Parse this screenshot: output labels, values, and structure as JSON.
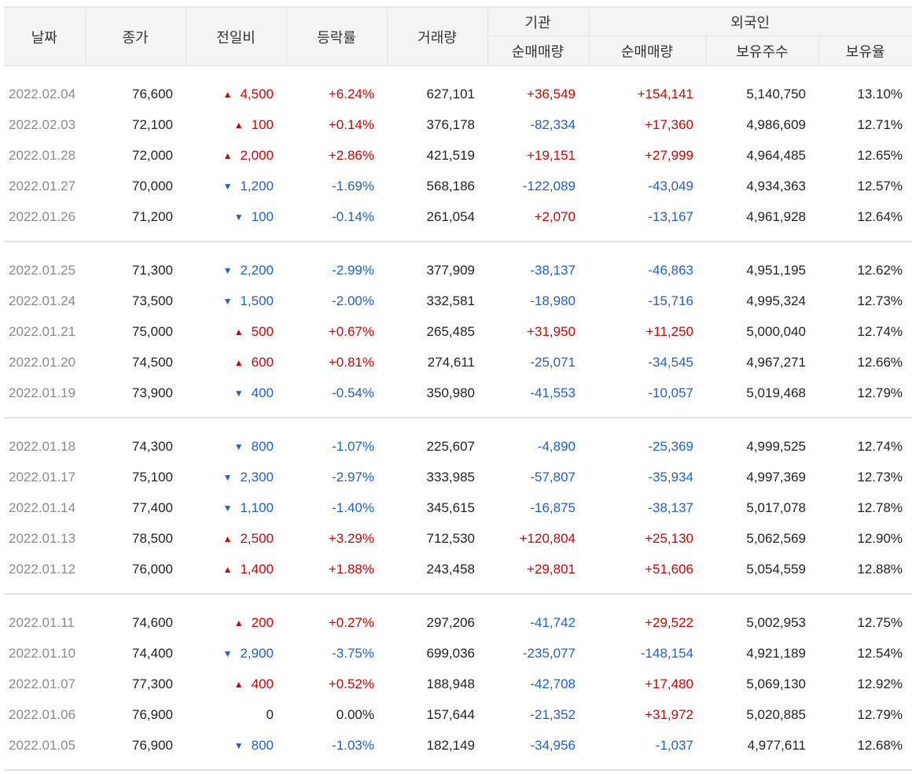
{
  "headers": {
    "date": "날짜",
    "close": "종가",
    "change": "전일비",
    "rate": "등락률",
    "volume": "거래량",
    "institution": "기관",
    "inst_net": "순매매량",
    "foreigner": "외국인",
    "for_net": "순매매량",
    "holdings": "보유주수",
    "ratio": "보유율"
  },
  "colors": {
    "up": "#d60000",
    "down": "#1f5fd1",
    "date": "#8a8a8a"
  },
  "groups": [
    [
      {
        "date": "2022.02.04",
        "close": "76,600",
        "dir": "up",
        "change": "4,500",
        "rate": "+6.24%",
        "volume": "627,101",
        "inst": "+36,549",
        "foreign": "+154,141",
        "holdings": "5,140,750",
        "ratio": "13.10%"
      },
      {
        "date": "2022.02.03",
        "close": "72,100",
        "dir": "up",
        "change": "100",
        "rate": "+0.14%",
        "volume": "376,178",
        "inst": "-82,334",
        "foreign": "+17,360",
        "holdings": "4,986,609",
        "ratio": "12.71%"
      },
      {
        "date": "2022.01.28",
        "close": "72,000",
        "dir": "up",
        "change": "2,000",
        "rate": "+2.86%",
        "volume": "421,519",
        "inst": "+19,151",
        "foreign": "+27,999",
        "holdings": "4,964,485",
        "ratio": "12.65%"
      },
      {
        "date": "2022.01.27",
        "close": "70,000",
        "dir": "down",
        "change": "1,200",
        "rate": "-1.69%",
        "volume": "568,186",
        "inst": "-122,089",
        "foreign": "-43,049",
        "holdings": "4,934,363",
        "ratio": "12.57%"
      },
      {
        "date": "2022.01.26",
        "close": "71,200",
        "dir": "down",
        "change": "100",
        "rate": "-0.14%",
        "volume": "261,054",
        "inst": "+2,070",
        "foreign": "-13,167",
        "holdings": "4,961,928",
        "ratio": "12.64%"
      }
    ],
    [
      {
        "date": "2022.01.25",
        "close": "71,300",
        "dir": "down",
        "change": "2,200",
        "rate": "-2.99%",
        "volume": "377,909",
        "inst": "-38,137",
        "foreign": "-46,863",
        "holdings": "4,951,195",
        "ratio": "12.62%"
      },
      {
        "date": "2022.01.24",
        "close": "73,500",
        "dir": "down",
        "change": "1,500",
        "rate": "-2.00%",
        "volume": "332,581",
        "inst": "-18,980",
        "foreign": "-15,716",
        "holdings": "4,995,324",
        "ratio": "12.73%"
      },
      {
        "date": "2022.01.21",
        "close": "75,000",
        "dir": "up",
        "change": "500",
        "rate": "+0.67%",
        "volume": "265,485",
        "inst": "+31,950",
        "foreign": "+11,250",
        "holdings": "5,000,040",
        "ratio": "12.74%"
      },
      {
        "date": "2022.01.20",
        "close": "74,500",
        "dir": "up",
        "change": "600",
        "rate": "+0.81%",
        "volume": "274,611",
        "inst": "-25,071",
        "foreign": "-34,545",
        "holdings": "4,967,271",
        "ratio": "12.66%"
      },
      {
        "date": "2022.01.19",
        "close": "73,900",
        "dir": "down",
        "change": "400",
        "rate": "-0.54%",
        "volume": "350,980",
        "inst": "-41,553",
        "foreign": "-10,057",
        "holdings": "5,019,468",
        "ratio": "12.79%"
      }
    ],
    [
      {
        "date": "2022.01.18",
        "close": "74,300",
        "dir": "down",
        "change": "800",
        "rate": "-1.07%",
        "volume": "225,607",
        "inst": "-4,890",
        "foreign": "-25,369",
        "holdings": "4,999,525",
        "ratio": "12.74%"
      },
      {
        "date": "2022.01.17",
        "close": "75,100",
        "dir": "down",
        "change": "2,300",
        "rate": "-2.97%",
        "volume": "333,985",
        "inst": "-57,807",
        "foreign": "-35,934",
        "holdings": "4,997,369",
        "ratio": "12.73%"
      },
      {
        "date": "2022.01.14",
        "close": "77,400",
        "dir": "down",
        "change": "1,100",
        "rate": "-1.40%",
        "volume": "345,615",
        "inst": "-16,875",
        "foreign": "-38,137",
        "holdings": "5,017,078",
        "ratio": "12.78%"
      },
      {
        "date": "2022.01.13",
        "close": "78,500",
        "dir": "up",
        "change": "2,500",
        "rate": "+3.29%",
        "volume": "712,530",
        "inst": "+120,804",
        "foreign": "+25,130",
        "holdings": "5,062,569",
        "ratio": "12.90%"
      },
      {
        "date": "2022.01.12",
        "close": "76,000",
        "dir": "up",
        "change": "1,400",
        "rate": "+1.88%",
        "volume": "243,458",
        "inst": "+29,801",
        "foreign": "+51,606",
        "holdings": "5,054,559",
        "ratio": "12.88%"
      }
    ],
    [
      {
        "date": "2022.01.11",
        "close": "74,600",
        "dir": "up",
        "change": "200",
        "rate": "+0.27%",
        "volume": "297,206",
        "inst": "-41,742",
        "foreign": "+29,522",
        "holdings": "5,002,953",
        "ratio": "12.75%"
      },
      {
        "date": "2022.01.10",
        "close": "74,400",
        "dir": "down",
        "change": "2,900",
        "rate": "-3.75%",
        "volume": "699,036",
        "inst": "-235,077",
        "foreign": "-148,154",
        "holdings": "4,921,189",
        "ratio": "12.54%"
      },
      {
        "date": "2022.01.07",
        "close": "77,300",
        "dir": "up",
        "change": "400",
        "rate": "+0.52%",
        "volume": "188,948",
        "inst": "-42,708",
        "foreign": "+17,480",
        "holdings": "5,069,130",
        "ratio": "12.92%"
      },
      {
        "date": "2022.01.06",
        "close": "76,900",
        "dir": "none",
        "change": "0",
        "rate": "0.00%",
        "volume": "157,644",
        "inst": "-21,352",
        "foreign": "+31,972",
        "holdings": "5,020,885",
        "ratio": "12.79%"
      },
      {
        "date": "2022.01.05",
        "close": "76,900",
        "dir": "down",
        "change": "800",
        "rate": "-1.03%",
        "volume": "182,149",
        "inst": "-34,956",
        "foreign": "-1,037",
        "holdings": "4,977,611",
        "ratio": "12.68%"
      }
    ]
  ]
}
